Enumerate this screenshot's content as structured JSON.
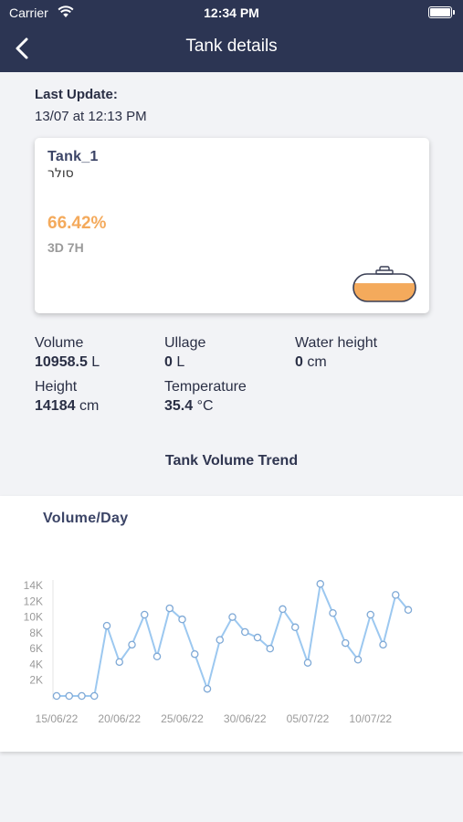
{
  "status_bar": {
    "carrier": "Carrier",
    "time": "12:34 PM"
  },
  "header": {
    "title": "Tank details"
  },
  "last_update": {
    "label": "Last Update:",
    "value": "13/07 at 12:13 PM"
  },
  "tank": {
    "name": "Tank_1",
    "product": "סולר",
    "percent": "66.42%",
    "fill_fraction": 0.6642,
    "time_left": "3D 7H"
  },
  "metrics": [
    {
      "label": "Volume",
      "value": "10958.5",
      "unit": "L"
    },
    {
      "label": "Ullage",
      "value": "0",
      "unit": "L"
    },
    {
      "label": "Water height",
      "value": "0",
      "unit": "cm"
    },
    {
      "label": "Height",
      "value": "14184",
      "unit": "cm"
    },
    {
      "label": "Temperature",
      "value": "35.4",
      "unit": "°C"
    }
  ],
  "trend": {
    "title": "Tank Volume Trend"
  },
  "colors": {
    "header": "#2c3553",
    "accent": "#f4aa5c",
    "line": "#9cc8f0"
  },
  "chart_data": {
    "type": "line",
    "title": "Volume/Day",
    "xlabel": "",
    "ylabel": "",
    "ylim": [
      0,
      14000
    ],
    "yticks": [
      "2K",
      "4K",
      "6K",
      "8K",
      "10K",
      "12K",
      "14K"
    ],
    "ytick_values": [
      2000,
      4000,
      6000,
      8000,
      10000,
      12000,
      14000
    ],
    "xticks": [
      "15/06/22",
      "20/06/22",
      "25/06/22",
      "30/06/22",
      "05/07/22",
      "10/07/22"
    ],
    "xtick_index": [
      0,
      5,
      10,
      15,
      20,
      25
    ],
    "grid": false,
    "x": [
      "15/06/22",
      "16/06/22",
      "17/06/22",
      "18/06/22",
      "19/06/22",
      "20/06/22",
      "21/06/22",
      "22/06/22",
      "23/06/22",
      "24/06/22",
      "25/06/22",
      "26/06/22",
      "27/06/22",
      "28/06/22",
      "29/06/22",
      "30/06/22",
      "01/07/22",
      "02/07/22",
      "03/07/22",
      "04/07/22",
      "05/07/22",
      "06/07/22",
      "07/07/22",
      "08/07/22",
      "09/07/22",
      "10/07/22",
      "11/07/22",
      "12/07/22",
      "13/07/22"
    ],
    "series": [
      {
        "values": [
          0,
          0,
          0,
          0,
          8900,
          4300,
          6500,
          10300,
          5000,
          11100,
          9700,
          5300,
          900,
          7100,
          10000,
          8100,
          7400,
          6000,
          11000,
          8700,
          4200,
          14200,
          10500,
          6700,
          4600,
          10300,
          6500,
          12800,
          10900
        ]
      }
    ]
  }
}
